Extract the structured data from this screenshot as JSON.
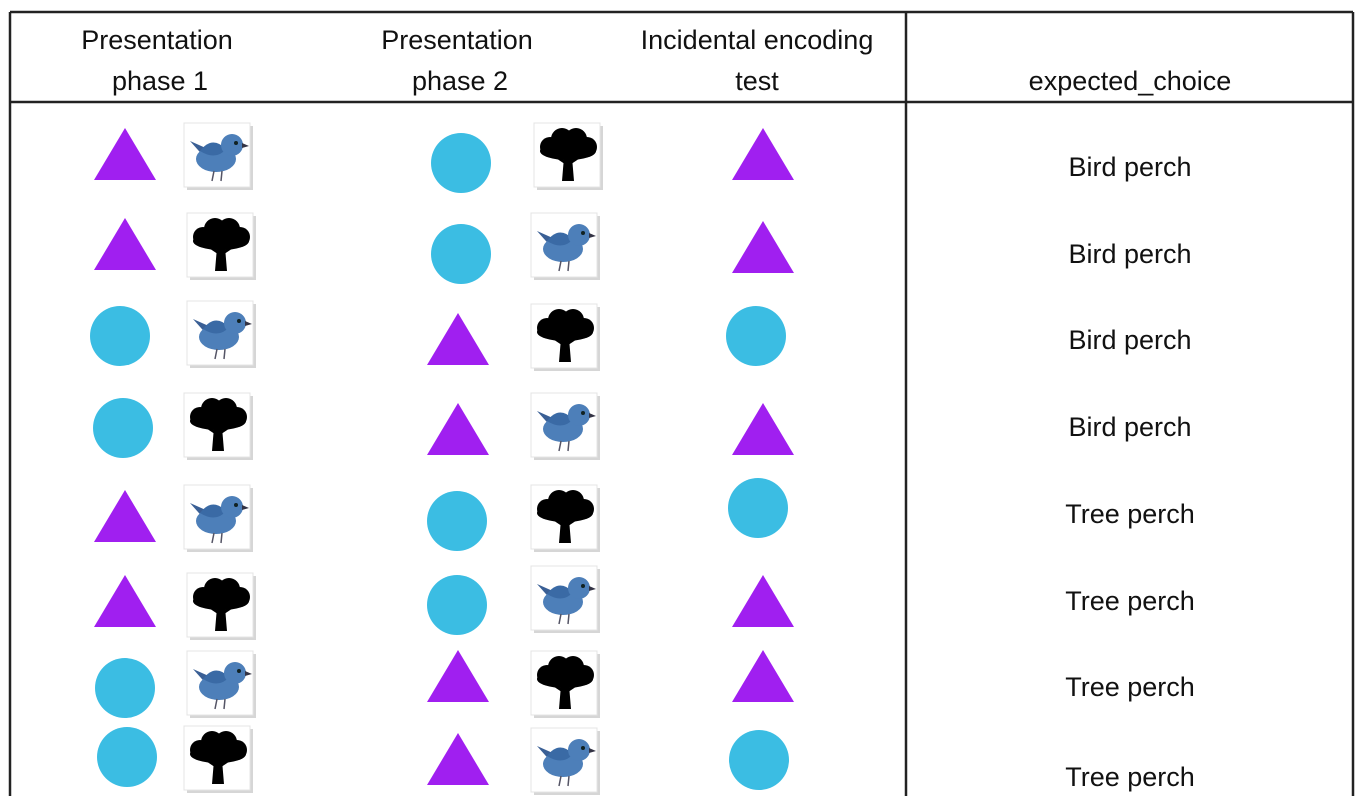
{
  "header": [
    [
      "Presentation",
      "phase 1"
    ],
    [
      "Presentation",
      "phase 2"
    ],
    [
      "Incidental encoding",
      "test"
    ],
    [
      "expected_choice"
    ]
  ],
  "rows": [
    "Bird perch",
    "Bird perch",
    "Bird perch",
    "Bird perch",
    "Tree perch",
    "Tree perch",
    "Tree perch",
    "Tree perch"
  ]
}
